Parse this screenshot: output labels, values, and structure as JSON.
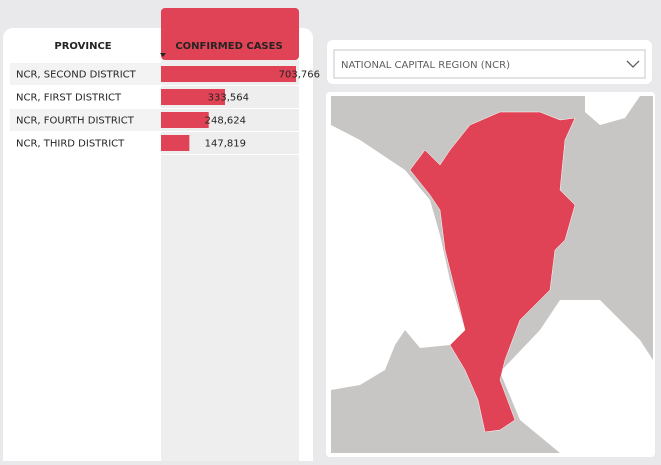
{
  "table": {
    "headers": [
      "PROVINCE",
      "CONFIRMED CASES"
    ],
    "rows": [
      {
        "province": "NCR, SECOND DISTRICT",
        "confirmed_cases": 703766,
        "confirmed_cases_label": "703,766"
      },
      {
        "province": "NCR, FIRST DISTRICT",
        "confirmed_cases": 333564,
        "confirmed_cases_label": "333,564"
      },
      {
        "province": "NCR, FOURTH DISTRICT",
        "confirmed_cases": 248624,
        "confirmed_cases_label": "248,624"
      },
      {
        "province": "NCR, THIRD DISTRICT",
        "confirmed_cases": 147819,
        "confirmed_cases_label": "147,819"
      }
    ]
  },
  "filter": {
    "selected": "NATIONAL CAPITAL REGION (NCR)"
  }
}
